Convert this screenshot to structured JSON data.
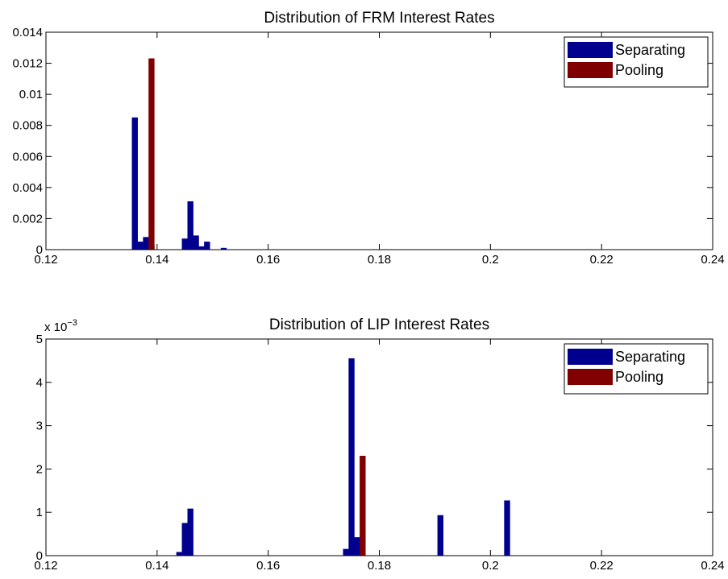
{
  "chart_data": [
    {
      "type": "bar",
      "title": "Distribution of FRM Interest Rates",
      "xlim": [
        0.12,
        0.24
      ],
      "xticks": [
        0.12,
        0.14,
        0.16,
        0.18,
        0.2,
        0.22,
        0.24
      ],
      "ylim": [
        0,
        0.014
      ],
      "yticks": [
        0,
        0.002,
        0.004,
        0.006,
        0.008,
        0.01,
        0.012,
        0.014
      ],
      "bar_width": 0.001,
      "legend": "northeast",
      "series": [
        {
          "name": "Separating",
          "color": "#00008f",
          "x": [
            0.136,
            0.137,
            0.138,
            0.139,
            0.145,
            0.146,
            0.147,
            0.148,
            0.149,
            0.152
          ],
          "values": [
            0.0085,
            0.0005,
            0.0008,
            0.0003,
            0.0007,
            0.0031,
            0.0009,
            0.0002,
            0.0005,
            0.0001
          ]
        },
        {
          "name": "Pooling",
          "color": "#800000",
          "x": [
            0.139
          ],
          "values": [
            0.0123
          ]
        }
      ]
    },
    {
      "type": "bar",
      "title": "Distribution of LIP Interest Rates",
      "y_multiplier": {
        "base": "x 10",
        "exponent": "−3"
      },
      "xlim": [
        0.12,
        0.24
      ],
      "xticks": [
        0.12,
        0.14,
        0.16,
        0.18,
        0.2,
        0.22,
        0.24
      ],
      "ylim": [
        0,
        5
      ],
      "yticks": [
        0,
        1,
        2,
        3,
        4,
        5
      ],
      "bar_width": 0.001,
      "legend": "northeast",
      "series": [
        {
          "name": "Separating",
          "color": "#00008f",
          "x": [
            0.144,
            0.145,
            0.146,
            0.174,
            0.175,
            0.176,
            0.191,
            0.203
          ],
          "values": [
            0.08,
            0.75,
            1.08,
            0.15,
            4.55,
            0.42,
            0.93,
            1.27
          ]
        },
        {
          "name": "Pooling",
          "color": "#800000",
          "x": [
            0.177
          ],
          "values": [
            2.3
          ]
        }
      ]
    }
  ]
}
